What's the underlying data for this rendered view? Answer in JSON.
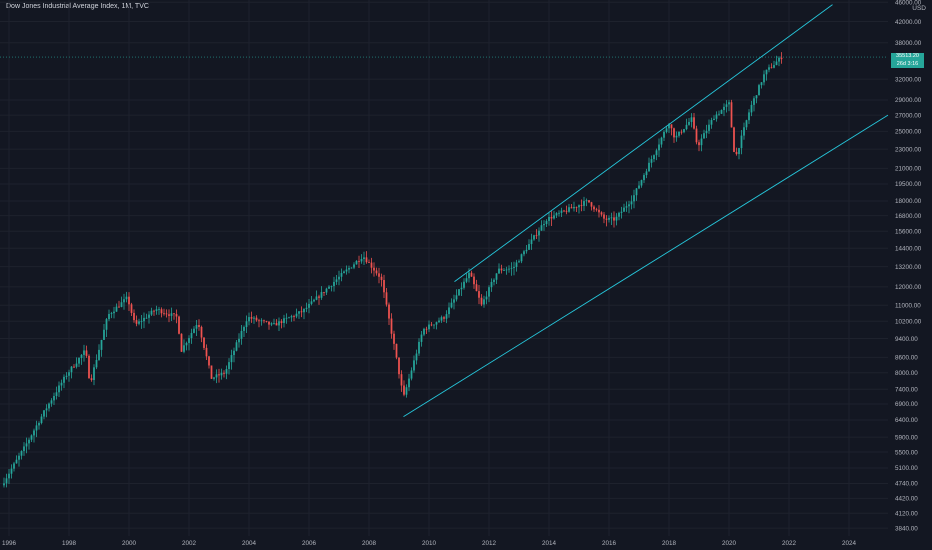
{
  "header": {
    "title": "Dow Jones Industrial Average Index, 1M, TVC",
    "currency": "USD"
  },
  "price_tag": {
    "value": "35513.20",
    "countdown": "26d 3:16"
  },
  "colors": {
    "background": "#131722",
    "up": "#26a69a",
    "down": "#ef5350",
    "channel": "#26c6da",
    "grid": "#1e222d",
    "text": "#b2b5be"
  },
  "chart_data": {
    "type": "candlestick",
    "title": "Dow Jones Industrial Average Index, 1M, TVC",
    "y_scale": "log",
    "ylim": [
      3700,
      46500
    ],
    "y_ticks": [
      46000,
      42000,
      38000,
      32000,
      29000,
      27000,
      25000,
      23000,
      21000,
      19500,
      18000,
      16800,
      15600,
      14400,
      13200,
      12000,
      11000,
      10200,
      9400,
      8600,
      8000,
      7400,
      6900,
      6400,
      5900,
      5500,
      5100,
      4740,
      4420,
      4120,
      3840
    ],
    "y_tick_labels": [
      "46000.00",
      "42000.00",
      "38000.00",
      "32000.00",
      "29000.00",
      "27000.00",
      "25000.00",
      "23000.00",
      "21000.00",
      "19500.00",
      "18000.00",
      "16800.00",
      "15600.00",
      "14400.00",
      "13200.00",
      "12000.00",
      "11000.00",
      "10200.00",
      "9400.00",
      "8600.00",
      "8000.00",
      "7400.00",
      "6900.00",
      "6400.00",
      "5900.00",
      "5500.00",
      "5100.00",
      "4740.00",
      "4420.00",
      "4120.00",
      "3840.00"
    ],
    "x_ticks": [
      "1996",
      "1998",
      "2000",
      "2002",
      "2004",
      "2006",
      "2008",
      "2010",
      "2012",
      "2014",
      "2016",
      "2018",
      "2020",
      "2022",
      "2024"
    ],
    "xlim": [
      1995.7,
      2025.3
    ],
    "last_price": 35513.2,
    "anchors": [
      {
        "t": 1995.75,
        "v": 4700
      },
      {
        "t": 1996.5,
        "v": 5600
      },
      {
        "t": 1997.2,
        "v": 6700
      },
      {
        "t": 1997.9,
        "v": 7900
      },
      {
        "t": 1998.55,
        "v": 8900
      },
      {
        "t": 1998.7,
        "v": 7600
      },
      {
        "t": 1999.3,
        "v": 10500
      },
      {
        "t": 1999.95,
        "v": 11400
      },
      {
        "t": 2000.2,
        "v": 10000
      },
      {
        "t": 2000.9,
        "v": 10800
      },
      {
        "t": 2001.6,
        "v": 10400
      },
      {
        "t": 2001.75,
        "v": 8900
      },
      {
        "t": 2002.3,
        "v": 10200
      },
      {
        "t": 2002.75,
        "v": 7800
      },
      {
        "t": 2003.2,
        "v": 8000
      },
      {
        "t": 2003.95,
        "v": 10400
      },
      {
        "t": 2004.8,
        "v": 10000
      },
      {
        "t": 2005.8,
        "v": 10700
      },
      {
        "t": 2006.9,
        "v": 12400
      },
      {
        "t": 2007.8,
        "v": 13900
      },
      {
        "t": 2008.4,
        "v": 12500
      },
      {
        "t": 2008.85,
        "v": 9000
      },
      {
        "t": 2009.15,
        "v": 7100
      },
      {
        "t": 2009.8,
        "v": 9800
      },
      {
        "t": 2010.5,
        "v": 10400
      },
      {
        "t": 2011.35,
        "v": 12800
      },
      {
        "t": 2011.75,
        "v": 11000
      },
      {
        "t": 2012.3,
        "v": 13000
      },
      {
        "t": 2012.8,
        "v": 13100
      },
      {
        "t": 2013.9,
        "v": 16500
      },
      {
        "t": 2015.3,
        "v": 18000
      },
      {
        "t": 2015.85,
        "v": 16500
      },
      {
        "t": 2016.2,
        "v": 16500
      },
      {
        "t": 2016.8,
        "v": 18300
      },
      {
        "t": 2018.0,
        "v": 26100
      },
      {
        "t": 2018.2,
        "v": 24200
      },
      {
        "t": 2018.75,
        "v": 26500
      },
      {
        "t": 2018.95,
        "v": 23300
      },
      {
        "t": 2019.5,
        "v": 26800
      },
      {
        "t": 2020.0,
        "v": 28500
      },
      {
        "t": 2020.2,
        "v": 21900
      },
      {
        "t": 2020.7,
        "v": 27800
      },
      {
        "t": 2021.2,
        "v": 33000
      },
      {
        "t": 2021.75,
        "v": 35500
      }
    ],
    "channel": {
      "upper": [
        [
          2010.85,
          12300
        ],
        [
          2023.45,
          45500
        ]
      ],
      "lower": [
        [
          2009.15,
          6500
        ],
        [
          2025.3,
          27000
        ]
      ]
    }
  }
}
